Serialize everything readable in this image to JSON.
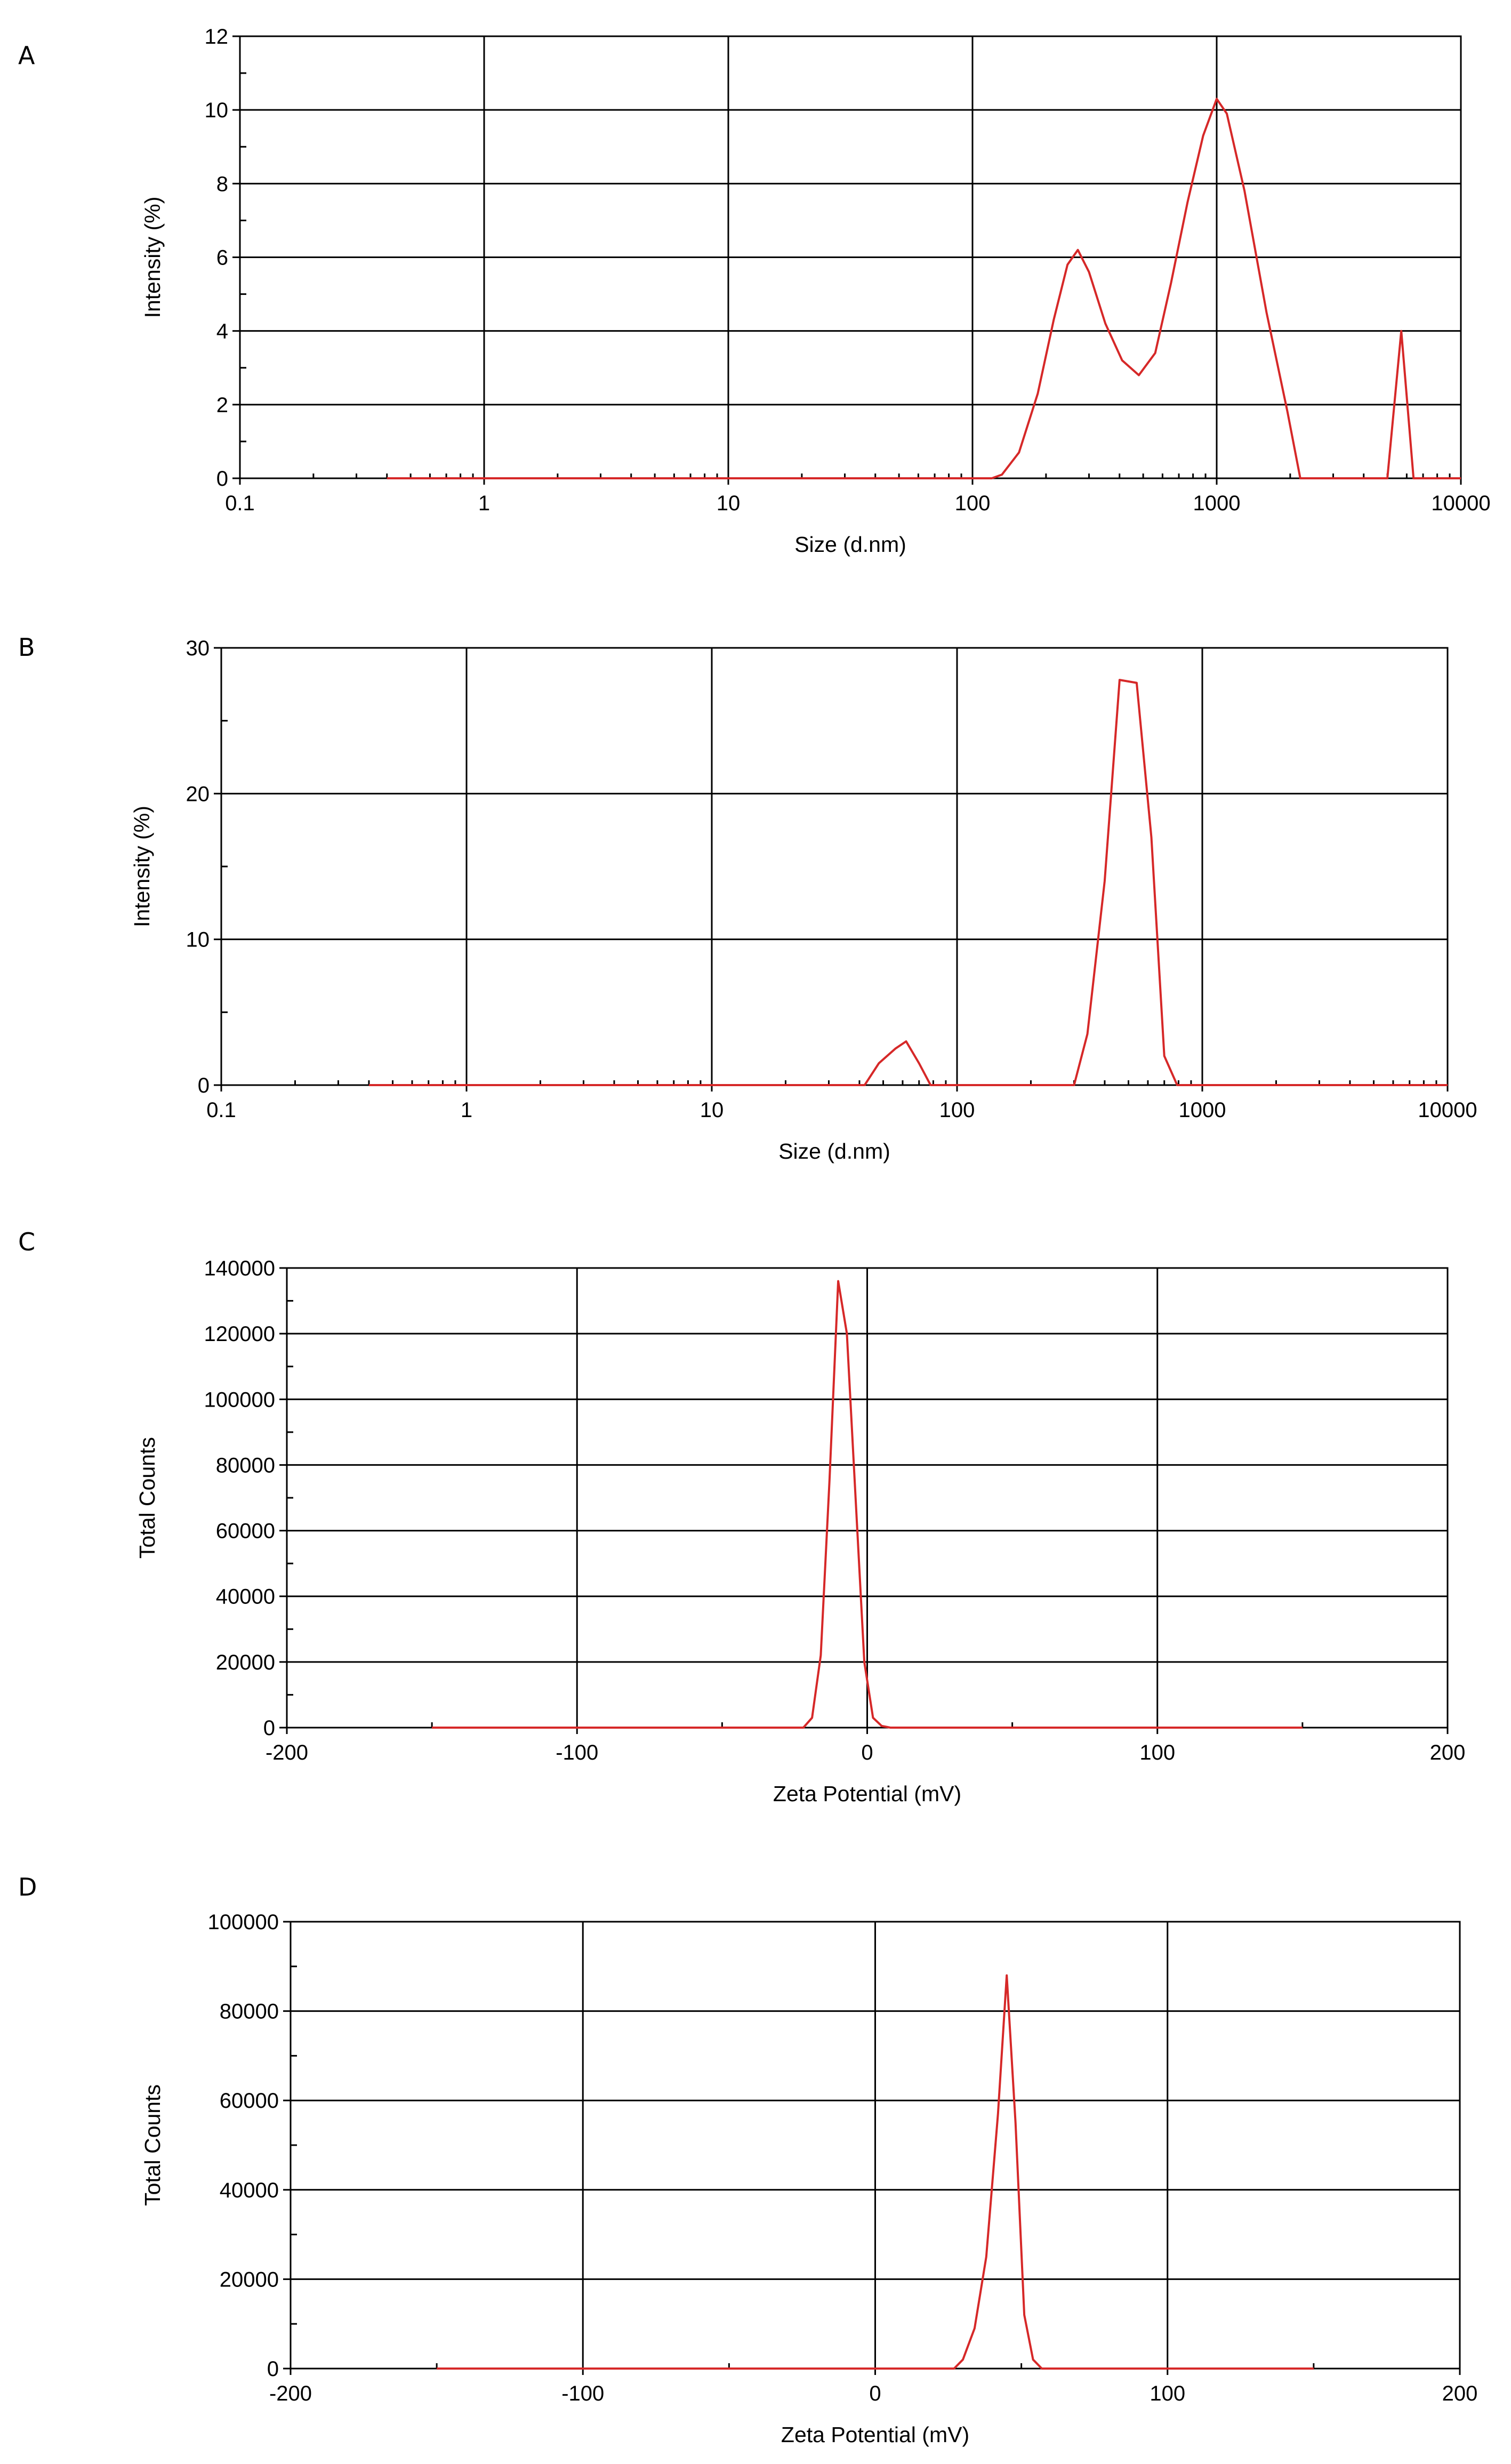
{
  "colors": {
    "series": "#d62828",
    "axis": "#000000"
  },
  "chart_data": [
    {
      "panel": "A",
      "type": "line",
      "xscale": "log",
      "xlim": [
        0.1,
        10000
      ],
      "ylim": [
        0,
        12
      ],
      "xticks": [
        0.1,
        1,
        10,
        100,
        1000,
        10000
      ],
      "xtick_labels": [
        "0.1",
        "1",
        "10",
        "100",
        "1000",
        "10000"
      ],
      "yticks": [
        0,
        2,
        4,
        6,
        8,
        10,
        12
      ],
      "ytick_labels": [
        "0",
        "2",
        "4",
        "6",
        "8",
        "10",
        "12"
      ],
      "xlabel": "Size (d.nm)",
      "ylabel": "Intensity (%)",
      "grid": true,
      "series": [
        {
          "x": [
            0.4,
            120,
            132,
            155,
            185,
            215,
            245,
            270,
            300,
            350,
            410,
            480,
            560,
            650,
            760,
            880,
            1000,
            1100,
            1300,
            1600,
            1950,
            2200,
            5000,
            5700,
            6400,
            10000
          ],
          "y": [
            0,
            0,
            0.1,
            0.7,
            2.3,
            4.3,
            5.8,
            6.2,
            5.6,
            4.2,
            3.2,
            2.8,
            3.4,
            5.3,
            7.5,
            9.3,
            10.3,
            9.9,
            7.8,
            4.5,
            1.8,
            0,
            0,
            4.0,
            0,
            0
          ]
        }
      ]
    },
    {
      "panel": "B",
      "type": "line",
      "xscale": "log",
      "xlim": [
        0.1,
        10000
      ],
      "ylim": [
        0,
        30
      ],
      "xticks": [
        0.1,
        1,
        10,
        100,
        1000,
        10000
      ],
      "xtick_labels": [
        "0.1",
        "1",
        "10",
        "100",
        "1000",
        "10000"
      ],
      "yticks": [
        0,
        10,
        20,
        30
      ],
      "ytick_labels": [
        "0",
        "10",
        "20",
        "30"
      ],
      "xlabel": "Size (d.nm)",
      "ylabel": "Intensity (%)",
      "grid": true,
      "series": [
        {
          "x": [
            0.4,
            42,
            48,
            56,
            62,
            70,
            78,
            300,
            340,
            400,
            460,
            540,
            620,
            700,
            790,
            880,
            10000
          ],
          "y": [
            0,
            0,
            1.5,
            2.5,
            3.0,
            1.5,
            0,
            0,
            3.5,
            14,
            27.8,
            27.6,
            17,
            2,
            0,
            0,
            0
          ]
        }
      ]
    },
    {
      "panel": "C",
      "type": "line",
      "xscale": "linear",
      "xlim": [
        -200,
        200
      ],
      "ylim": [
        0,
        140000
      ],
      "xticks": [
        -200,
        -100,
        0,
        100,
        200
      ],
      "xtick_labels": [
        "-200",
        "-100",
        "0",
        "100",
        "200"
      ],
      "yticks": [
        0,
        20000,
        40000,
        60000,
        80000,
        100000,
        120000,
        140000
      ],
      "ytick_labels": [
        "0",
        "20000",
        "40000",
        "60000",
        "80000",
        "100000",
        "120000",
        "140000"
      ],
      "xlabel": "Zeta Potential (mV)",
      "ylabel": "Total Counts",
      "grid": true,
      "series": [
        {
          "x": [
            -150,
            -22,
            -19,
            -16,
            -13,
            -10,
            -7,
            -4,
            -1,
            2,
            5,
            8,
            10,
            150
          ],
          "y": [
            0,
            0,
            3000,
            22000,
            75000,
            136000,
            120000,
            70000,
            20000,
            3000,
            500,
            0,
            0,
            0
          ]
        }
      ]
    },
    {
      "panel": "D",
      "type": "line",
      "xscale": "linear",
      "xlim": [
        -200,
        200
      ],
      "ylim": [
        0,
        100000
      ],
      "xticks": [
        -200,
        -100,
        0,
        100,
        200
      ],
      "xtick_labels": [
        "-200",
        "-100",
        "0",
        "100",
        "200"
      ],
      "yticks": [
        0,
        20000,
        40000,
        60000,
        80000,
        100000
      ],
      "ytick_labels": [
        "0",
        "20000",
        "40000",
        "60000",
        "80000",
        "100000"
      ],
      "xlabel": "Zeta Potential (mV)",
      "ylabel": "Total Counts",
      "grid": true,
      "series": [
        {
          "x": [
            -150,
            27,
            30,
            34,
            38,
            42,
            45,
            48,
            51,
            54,
            57,
            60,
            150
          ],
          "y": [
            0,
            0,
            2000,
            9000,
            25000,
            57000,
            88000,
            55000,
            12000,
            2000,
            0,
            0,
            0
          ]
        }
      ]
    }
  ]
}
